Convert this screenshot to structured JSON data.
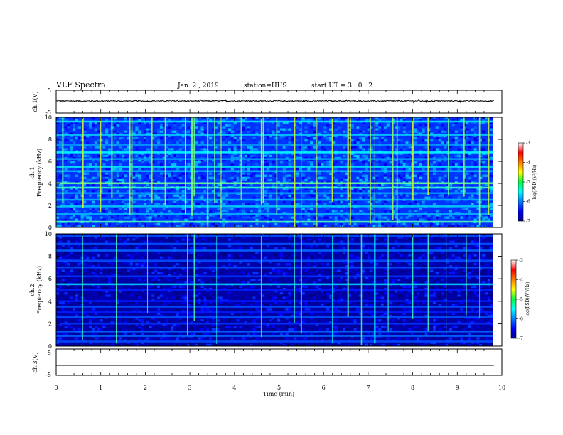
{
  "header": {
    "title": "VLF Spectra",
    "date": "Jan. 2 , 2019",
    "station": "station=HUS",
    "start": "start UT =  3 : 0 : 2"
  },
  "chart_data": [
    {
      "type": "line",
      "panel": "ch1-waveform",
      "ylabel": "ch.1(V)",
      "ylim": [
        -5,
        5
      ],
      "yticks": [
        "5",
        "-5"
      ],
      "baseline": 0.3,
      "noise": "low-amplitude broadband trace",
      "xlim": [
        0,
        10
      ]
    },
    {
      "type": "heatmap",
      "panel": "ch1-spectrogram",
      "ylabel_top": "ch.1",
      "ylabel": "Frequency (kHz)",
      "ylim": [
        0,
        10
      ],
      "yticks": [
        "0",
        "2",
        "4",
        "6",
        "8",
        "10"
      ],
      "xlim": [
        0,
        9.8
      ],
      "colorbar": {
        "label": "log(PSD)(V²/Hz)",
        "range": [
          -7,
          -3
        ],
        "ticks": [
          "-3",
          "-4",
          "-5",
          "-6",
          "-7"
        ]
      },
      "background_level": -6.3,
      "bands_kHz": [
        {
          "f": 0.5,
          "level": -5.2
        },
        {
          "f": 1.2,
          "level": -5.8
        },
        {
          "f": 1.9,
          "level": -5.7
        },
        {
          "f": 2.5,
          "level": -5.8
        },
        {
          "f": 3.1,
          "level": -5.9
        },
        {
          "f": 3.6,
          "level": -5.3
        },
        {
          "f": 4.0,
          "level": -5.1
        },
        {
          "f": 5.1,
          "level": -5.8
        },
        {
          "f": 5.5,
          "level": -5.6
        },
        {
          "f": 6.2,
          "level": -5.9
        },
        {
          "f": 6.8,
          "level": -5.5
        },
        {
          "f": 7.5,
          "level": -5.9
        },
        {
          "f": 8.4,
          "level": -5.7
        },
        {
          "f": 9.6,
          "level": -5.6
        }
      ],
      "impulsive_lines_min": [
        0.15,
        0.6,
        1.0,
        1.25,
        1.3,
        1.65,
        1.7,
        2.15,
        2.45,
        2.9,
        3.05,
        3.1,
        3.4,
        3.55,
        3.7,
        4.15,
        4.6,
        4.65,
        4.95,
        5.35,
        5.5,
        5.85,
        6.2,
        6.55,
        6.6,
        7.05,
        7.15,
        7.55,
        7.65,
        8.0,
        8.35,
        8.8,
        9.15,
        9.5,
        9.7
      ]
    },
    {
      "type": "heatmap",
      "panel": "ch2-spectrogram",
      "ylabel_top": "ch.2",
      "ylabel": "Frequency (kHz)",
      "ylim": [
        0,
        10
      ],
      "yticks": [
        "0",
        "2",
        "4",
        "6",
        "8",
        "10"
      ],
      "xlim": [
        0,
        9.8
      ],
      "colorbar": {
        "label": "log(PSD)(V²/Hz)",
        "range": [
          -7,
          -3
        ],
        "ticks": [
          "-3",
          "-4",
          "-5",
          "-6",
          "-7"
        ]
      },
      "background_level": -6.85,
      "bands_kHz": [
        {
          "f": 0.4,
          "level": -6.2
        },
        {
          "f": 0.9,
          "level": -6.1
        },
        {
          "f": 1.3,
          "level": -6.1
        },
        {
          "f": 2.0,
          "level": -6.3
        },
        {
          "f": 2.6,
          "level": -6.2
        },
        {
          "f": 3.0,
          "level": -6.4
        },
        {
          "f": 3.5,
          "level": -6.2
        },
        {
          "f": 4.0,
          "level": -6.4
        },
        {
          "f": 5.0,
          "level": -6.4
        },
        {
          "f": 5.5,
          "level": -5.7
        },
        {
          "f": 6.2,
          "level": -6.3
        },
        {
          "f": 7.0,
          "level": -6.2
        },
        {
          "f": 7.6,
          "level": -6.2
        },
        {
          "f": 8.5,
          "level": -6.1
        },
        {
          "f": 9.1,
          "level": -6.2
        },
        {
          "f": 9.8,
          "level": -6.2
        }
      ],
      "impulsive_lines_min": [
        0.6,
        1.35,
        1.7,
        2.05,
        2.95,
        3.1,
        3.6,
        4.6,
        5.35,
        5.5,
        6.2,
        6.55,
        6.85,
        7.15,
        7.45,
        8.0,
        8.35,
        8.75,
        9.2,
        9.5
      ]
    },
    {
      "type": "line",
      "panel": "ch3-waveform",
      "ylabel": "ch.3(V)",
      "ylim": [
        -5,
        5
      ],
      "yticks": [
        "5",
        "-5"
      ],
      "baseline": -1.2,
      "xlim": [
        0,
        10
      ]
    }
  ],
  "xaxis": {
    "label": "Time (min)",
    "ticks": [
      "0",
      "1",
      "2",
      "3",
      "4",
      "5",
      "6",
      "7",
      "8",
      "9",
      "10"
    ],
    "range": [
      0,
      10
    ]
  }
}
